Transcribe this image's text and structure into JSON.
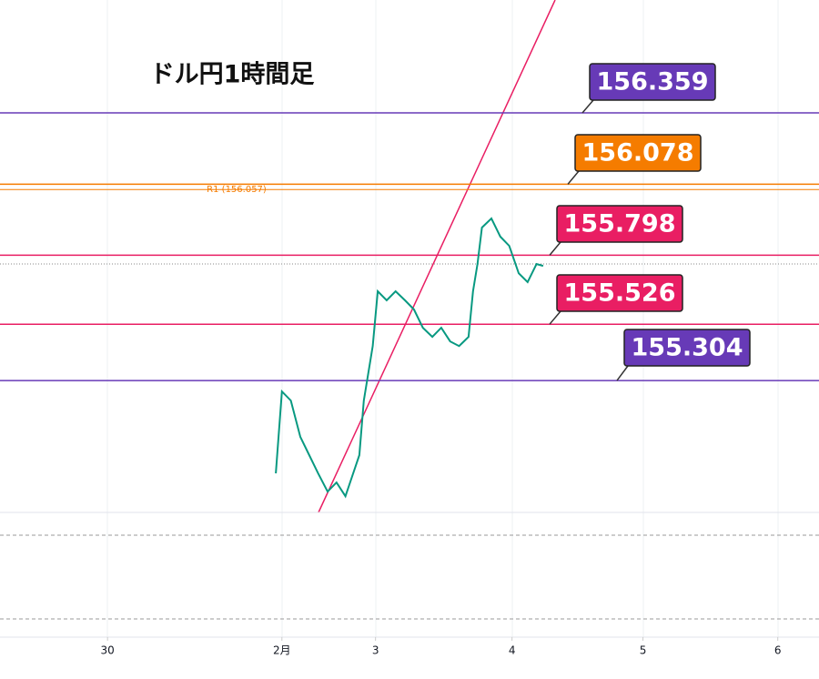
{
  "chart_data": {
    "type": "line",
    "title": "ドル円1時間足",
    "ylim": [
      154.784,
      156.804
    ],
    "xlim": [
      0,
      147
    ],
    "xticks": [
      {
        "value": 19.3,
        "label": "30"
      },
      {
        "value": 50.6,
        "label": "2月"
      },
      {
        "value": 67.4,
        "label": "3"
      },
      {
        "value": 91.9,
        "label": "4"
      },
      {
        "value": 115.4,
        "label": "5"
      },
      {
        "value": 139.6,
        "label": "6"
      }
    ],
    "levels": [
      {
        "value": 156.359,
        "color": "#673ab7"
      },
      {
        "value": 156.078,
        "color": "#f57c00"
      },
      {
        "value": 155.798,
        "color": "#e91e63"
      },
      {
        "value": 155.526,
        "color": "#e91e63"
      },
      {
        "value": 155.304,
        "color": "#673ab7"
      }
    ],
    "pivot": {
      "value": 156.057,
      "label": "R1 (156.057)",
      "color": "#f57c00"
    },
    "series": [
      {
        "color": "#089981",
        "x": [
          49.5,
          50.6,
          52.2,
          53.9,
          55.5,
          57.1,
          58.8,
          60.4,
          62,
          64.5,
          65.3,
          66.9,
          67.8,
          69.4,
          71,
          72.7,
          74.3,
          75.9,
          77.6,
          79.2,
          80.8,
          82.4,
          84.1,
          84.9,
          85.7,
          86.5,
          88.2,
          89.8,
          91.4,
          93.1,
          94.7,
          96.3,
          97.5
        ],
        "values": [
          154.938,
          155.261,
          155.225,
          155.082,
          155.01,
          154.938,
          154.866,
          154.902,
          154.848,
          155.01,
          155.225,
          155.44,
          155.656,
          155.62,
          155.656,
          155.62,
          155.584,
          155.512,
          155.476,
          155.512,
          155.458,
          155.44,
          155.476,
          155.656,
          155.763,
          155.907,
          155.943,
          155.871,
          155.835,
          155.727,
          155.692,
          155.763,
          155.756
        ]
      }
    ]
  }
}
